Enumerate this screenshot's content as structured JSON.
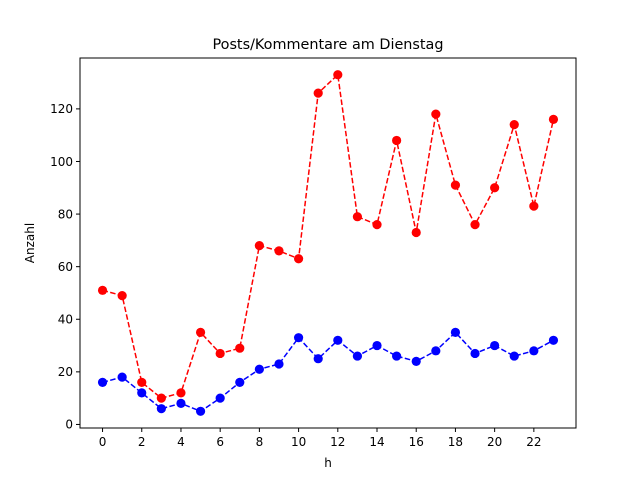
{
  "chart_data": {
    "type": "line",
    "title": "Posts/Kommentare am Dienstag",
    "xlabel": "h",
    "ylabel": "Anzahl",
    "x": [
      0,
      1,
      2,
      3,
      4,
      5,
      6,
      7,
      8,
      9,
      10,
      11,
      12,
      13,
      14,
      15,
      16,
      17,
      18,
      19,
      20,
      21,
      22,
      23
    ],
    "xlim": [
      -1.15,
      24.15
    ],
    "ylim": [
      -1.35,
      139.35
    ],
    "xticks": [
      0,
      2,
      4,
      6,
      8,
      10,
      12,
      14,
      16,
      18,
      20,
      22
    ],
    "yticks": [
      0,
      20,
      40,
      60,
      80,
      100,
      120
    ],
    "grid": false,
    "legend": "none",
    "series": [
      {
        "color": "#ff0000",
        "line_style": "dashed",
        "marker": "circle",
        "values": [
          51,
          49,
          16,
          10,
          12,
          35,
          27,
          29,
          68,
          66,
          63,
          126,
          133,
          79,
          76,
          108,
          73,
          118,
          91,
          76,
          90,
          114,
          83,
          116
        ]
      },
      {
        "color": "#0000ff",
        "line_style": "dashed",
        "marker": "circle",
        "values": [
          16,
          18,
          12,
          6,
          8,
          5,
          10,
          16,
          21,
          23,
          33,
          25,
          32,
          26,
          30,
          26,
          24,
          28,
          35,
          27,
          30,
          26,
          28,
          32
        ]
      }
    ]
  }
}
